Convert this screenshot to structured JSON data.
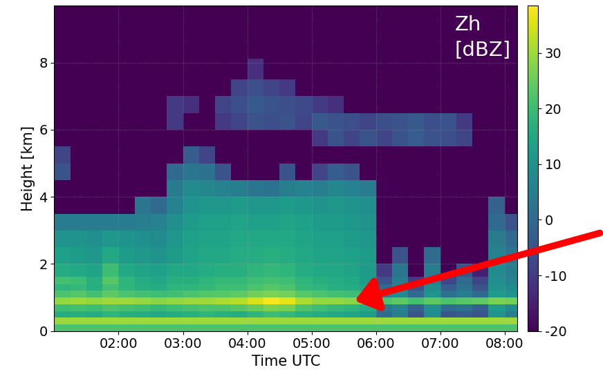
{
  "chart_data": {
    "type": "heatmap",
    "x_label": "Time UTC",
    "y_label": "Height [km]",
    "annotation": "Zh\n[dBZ]",
    "color": "viridis",
    "grid": true,
    "x": [
      1.125,
      1.375,
      1.625,
      1.875,
      2.125,
      2.375,
      2.625,
      2.875,
      3.125,
      3.375,
      3.625,
      3.875,
      4.125,
      4.375,
      4.625,
      4.875,
      5.125,
      5.375,
      5.625,
      5.875,
      6.125,
      6.375,
      6.625,
      6.875,
      7.125,
      7.375,
      7.625,
      7.875,
      8.125
    ],
    "y": [
      0.1,
      0.3,
      0.5,
      0.7,
      0.9,
      1.1,
      1.3,
      1.5,
      1.75,
      2.25,
      2.75,
      3.25,
      3.75,
      4.25,
      4.75,
      5.25,
      5.75,
      6.25,
      6.75,
      7.25,
      7.75,
      8.5,
      9.5
    ],
    "values": [
      [
        22,
        22,
        22,
        22,
        22,
        22,
        22,
        22,
        22,
        22,
        22,
        22,
        22,
        22,
        22,
        22,
        22,
        22,
        22,
        22,
        22,
        22,
        22,
        22,
        22,
        22,
        22,
        22,
        22
      ],
      [
        30,
        30,
        30,
        30,
        30,
        30,
        30,
        30,
        30,
        30,
        30,
        30,
        30,
        30,
        30,
        30,
        30,
        30,
        30,
        30,
        30,
        30,
        30,
        30,
        30,
        30,
        30,
        30,
        30
      ],
      [
        16,
        17,
        16,
        18,
        17,
        16,
        15,
        16,
        17,
        18,
        17,
        16,
        18,
        20,
        19,
        17,
        16,
        15,
        14,
        12,
        0,
        5,
        -5,
        8,
        -5,
        -3,
        -5,
        10,
        5
      ],
      [
        20,
        21,
        20,
        22,
        21,
        20,
        19,
        20,
        21,
        22,
        22,
        23,
        25,
        27,
        26,
        22,
        20,
        19,
        18,
        16,
        3,
        6,
        -2,
        9,
        0,
        2,
        -3,
        12,
        8
      ],
      [
        29,
        30,
        29,
        30,
        30,
        29,
        28,
        29,
        30,
        30,
        31,
        32,
        35,
        38,
        36,
        31,
        29,
        29,
        28,
        27,
        22,
        24,
        21,
        24,
        22,
        23,
        24,
        27,
        26
      ],
      [
        22,
        23,
        21,
        24,
        22,
        21,
        20,
        21,
        22,
        23,
        23,
        24,
        26,
        27,
        26,
        23,
        22,
        21,
        20,
        18,
        5,
        8,
        0,
        10,
        2,
        4,
        0,
        12,
        10
      ],
      [
        18,
        19,
        17,
        21,
        18,
        17,
        16,
        18,
        18,
        19,
        20,
        20,
        22,
        23,
        22,
        19,
        18,
        17,
        16,
        14,
        0,
        6,
        -5,
        8,
        -3,
        2,
        -5,
        10,
        8
      ],
      [
        21,
        20,
        17,
        23,
        18,
        16,
        15,
        17,
        17,
        18,
        19,
        19,
        20,
        21,
        20,
        18,
        17,
        16,
        15,
        12,
        -5,
        5,
        -10,
        6,
        -8,
        0,
        -8,
        9,
        6
      ],
      [
        16,
        15,
        14,
        20,
        15,
        14,
        13,
        15,
        15,
        16,
        17,
        17,
        18,
        19,
        18,
        16,
        15,
        15,
        14,
        12,
        -10,
        3,
        -20,
        4,
        -20,
        -5,
        -15,
        8,
        5
      ],
      [
        13,
        12,
        11,
        15,
        12,
        11,
        10,
        12,
        14,
        15,
        15,
        16,
        16,
        17,
        16,
        15,
        14,
        14,
        13,
        12,
        -20,
        -5,
        -20,
        0,
        -20,
        -20,
        -20,
        6,
        3
      ],
      [
        10,
        10,
        9,
        11,
        10,
        9,
        8,
        11,
        13,
        14,
        14,
        15,
        15,
        15,
        15,
        14,
        13,
        13,
        12,
        11,
        -20,
        -20,
        -20,
        -20,
        -20,
        -20,
        -20,
        4,
        0
      ],
      [
        4,
        4,
        4,
        4,
        4,
        5,
        6,
        9,
        12,
        13,
        13,
        14,
        13,
        13,
        14,
        13,
        12,
        12,
        11,
        10,
        -20,
        -20,
        -20,
        -20,
        -20,
        -20,
        -20,
        0,
        -5
      ],
      [
        -20,
        -20,
        -20,
        -20,
        -20,
        3,
        0,
        6,
        10,
        11,
        11,
        12,
        11,
        11,
        12,
        11,
        10,
        11,
        10,
        9,
        -20,
        -20,
        -20,
        -20,
        -20,
        -20,
        -20,
        -2,
        -20
      ],
      [
        -20,
        -20,
        -20,
        -20,
        -20,
        -20,
        -20,
        4,
        8,
        7,
        6,
        5,
        3,
        2,
        5,
        6,
        5,
        7,
        6,
        4,
        -20,
        -20,
        -20,
        -20,
        -20,
        -20,
        -20,
        -20,
        -20
      ],
      [
        -5,
        -20,
        -20,
        -20,
        -20,
        -20,
        -20,
        0,
        3,
        2,
        -5,
        -20,
        -20,
        -20,
        -5,
        -20,
        -8,
        -3,
        -5,
        -20,
        -20,
        -20,
        -20,
        -20,
        -20,
        -20,
        -20,
        -20,
        -20
      ],
      [
        -8,
        -20,
        -20,
        -20,
        -20,
        -20,
        -20,
        -20,
        -3,
        -8,
        -20,
        -20,
        -20,
        -20,
        -20,
        -20,
        -20,
        -20,
        -20,
        -20,
        -20,
        -20,
        -20,
        -20,
        -20,
        -20,
        -20,
        -20,
        -20
      ],
      [
        -20,
        -20,
        -20,
        -20,
        -20,
        -20,
        -20,
        -20,
        -20,
        -20,
        -20,
        -20,
        -20,
        -20,
        -20,
        -20,
        -10,
        -5,
        -8,
        -5,
        -8,
        -5,
        -3,
        -5,
        -6,
        -8,
        -20,
        -20,
        -20
      ],
      [
        -20,
        -20,
        -20,
        -20,
        -20,
        -20,
        -20,
        -10,
        -20,
        -20,
        -10,
        -8,
        -5,
        -6,
        -5,
        -8,
        -4,
        -5,
        -6,
        -8,
        -6,
        -5,
        -4,
        -6,
        -5,
        -10,
        -20,
        -20,
        -20
      ],
      [
        -20,
        -20,
        -20,
        -20,
        -20,
        -20,
        -20,
        -10,
        -12,
        -20,
        -8,
        -6,
        -4,
        -5,
        -6,
        -7,
        -10,
        -12,
        -20,
        -20,
        -20,
        -20,
        -20,
        -20,
        -20,
        -20,
        -20,
        -20,
        -20
      ],
      [
        -20,
        -20,
        -20,
        -20,
        -20,
        -20,
        -20,
        -20,
        -20,
        -20,
        -20,
        -8,
        -6,
        -8,
        -10,
        -20,
        -20,
        -20,
        -20,
        -20,
        -20,
        -20,
        -20,
        -20,
        -20,
        -20,
        -20,
        -20,
        -20
      ],
      [
        -20,
        -20,
        -20,
        -20,
        -20,
        -20,
        -20,
        -20,
        -20,
        -20,
        -20,
        -20,
        -12,
        -20,
        -20,
        -20,
        -20,
        -20,
        -20,
        -20,
        -20,
        -20,
        -20,
        -20,
        -20,
        -20,
        -20,
        -20,
        -20
      ],
      [
        -20,
        -20,
        -20,
        -20,
        -20,
        -20,
        -20,
        -20,
        -20,
        -20,
        -20,
        -20,
        -20,
        -20,
        -20,
        -20,
        -20,
        -20,
        -20,
        -20,
        -20,
        -20,
        -20,
        -20,
        -20,
        -20,
        -20,
        -20,
        -20
      ],
      [
        -20,
        -20,
        -20,
        -20,
        -20,
        -20,
        -20,
        -20,
        -20,
        -20,
        -20,
        -20,
        -20,
        -20,
        -20,
        -20,
        -20,
        -20,
        -20,
        -20,
        -20,
        -20,
        -20,
        -20,
        -20,
        -20,
        -20,
        -20,
        -20
      ]
    ],
    "xlim": [
      1.0,
      8.2
    ],
    "xticks": [
      {
        "value": 2,
        "label": "02:00"
      },
      {
        "value": 3,
        "label": "03:00"
      },
      {
        "value": 4,
        "label": "04:00"
      },
      {
        "value": 5,
        "label": "05:00"
      },
      {
        "value": 6,
        "label": "06:00"
      },
      {
        "value": 7,
        "label": "07:00"
      },
      {
        "value": 8,
        "label": "08:00"
      }
    ],
    "ylim": [
      0,
      9.7
    ],
    "yticks": [
      0,
      2,
      4,
      6,
      8
    ],
    "colorbar_range": [
      -20,
      38.5
    ],
    "colorbar_ticks": [
      -20,
      -10,
      0,
      10,
      20,
      30
    ]
  }
}
